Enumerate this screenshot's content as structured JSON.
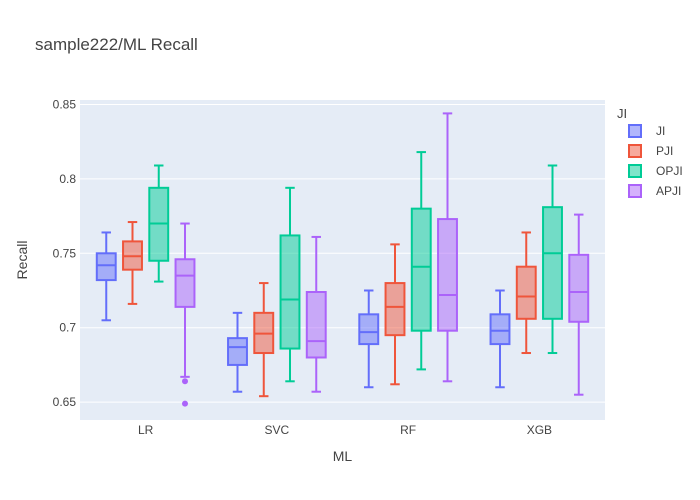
{
  "chart_data": {
    "type": "box",
    "title": "sample222/ML Recall",
    "xlabel": "ML",
    "ylabel": "Recall",
    "categories": [
      "LR",
      "SVC",
      "RF",
      "XGB"
    ],
    "ylim": [
      0.638,
      0.853
    ],
    "yticks": [
      0.65,
      0.7,
      0.75,
      0.8,
      0.85
    ],
    "ytick_labels": [
      "0.65",
      "0.7",
      "0.75",
      "0.8",
      "0.85"
    ],
    "grid": true,
    "legend": {
      "title": "JI",
      "position": "top-right"
    },
    "series": [
      {
        "name": "JI",
        "color": "#636efa",
        "boxes": [
          {
            "min": 0.705,
            "q1": 0.732,
            "median": 0.742,
            "q3": 0.75,
            "max": 0.764,
            "outliers": []
          },
          {
            "min": 0.657,
            "q1": 0.675,
            "median": 0.687,
            "q3": 0.693,
            "max": 0.71,
            "outliers": []
          },
          {
            "min": 0.66,
            "q1": 0.689,
            "median": 0.697,
            "q3": 0.709,
            "max": 0.725,
            "outliers": []
          },
          {
            "min": 0.66,
            "q1": 0.689,
            "median": 0.698,
            "q3": 0.709,
            "max": 0.725,
            "outliers": []
          }
        ]
      },
      {
        "name": "PJI",
        "color": "#ef553b",
        "boxes": [
          {
            "min": 0.716,
            "q1": 0.739,
            "median": 0.748,
            "q3": 0.758,
            "max": 0.771,
            "outliers": []
          },
          {
            "min": 0.654,
            "q1": 0.683,
            "median": 0.696,
            "q3": 0.71,
            "max": 0.73,
            "outliers": []
          },
          {
            "min": 0.662,
            "q1": 0.695,
            "median": 0.714,
            "q3": 0.73,
            "max": 0.756,
            "outliers": []
          },
          {
            "min": 0.683,
            "q1": 0.706,
            "median": 0.721,
            "q3": 0.741,
            "max": 0.764,
            "outliers": []
          }
        ]
      },
      {
        "name": "OPJI",
        "color": "#00cc96",
        "boxes": [
          {
            "min": 0.731,
            "q1": 0.745,
            "median": 0.77,
            "q3": 0.794,
            "max": 0.809,
            "outliers": []
          },
          {
            "min": 0.664,
            "q1": 0.686,
            "median": 0.719,
            "q3": 0.762,
            "max": 0.794,
            "outliers": []
          },
          {
            "min": 0.672,
            "q1": 0.698,
            "median": 0.741,
            "q3": 0.78,
            "max": 0.818,
            "outliers": []
          },
          {
            "min": 0.683,
            "q1": 0.706,
            "median": 0.75,
            "q3": 0.781,
            "max": 0.809,
            "outliers": []
          }
        ]
      },
      {
        "name": "APJI",
        "color": "#ab63fa",
        "boxes": [
          {
            "min": 0.667,
            "q1": 0.714,
            "median": 0.735,
            "q3": 0.746,
            "max": 0.77,
            "outliers": [
              0.664,
              0.649
            ]
          },
          {
            "min": 0.657,
            "q1": 0.68,
            "median": 0.691,
            "q3": 0.724,
            "max": 0.761,
            "outliers": []
          },
          {
            "min": 0.664,
            "q1": 0.698,
            "median": 0.722,
            "q3": 0.773,
            "max": 0.844,
            "outliers": []
          },
          {
            "min": 0.655,
            "q1": 0.704,
            "median": 0.724,
            "q3": 0.749,
            "max": 0.776,
            "outliers": []
          }
        ]
      }
    ]
  }
}
